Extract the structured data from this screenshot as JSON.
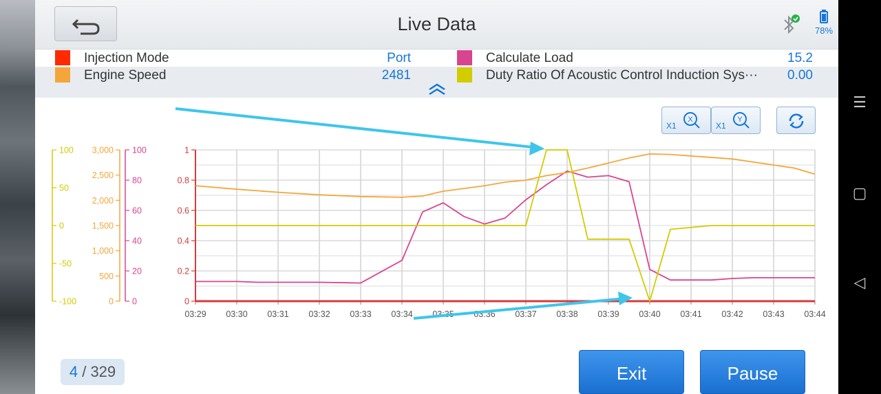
{
  "header": {
    "title": "Live Data",
    "battery": "78%"
  },
  "icons": {
    "back": "back-arrow-icon",
    "bluetooth": "bluetooth-connected-icon",
    "battery": "battery-icon",
    "collapse": "double-chevron-up-icon",
    "refresh": "refresh-icon"
  },
  "params": [
    {
      "name": "Injection Mode",
      "value": "Port",
      "color": "#ff2a00"
    },
    {
      "name": "Calculate Load",
      "value": "15.2",
      "color": "#d9448e"
    },
    {
      "name": "Engine Speed",
      "value": "2481",
      "color": "#f4a63a"
    },
    {
      "name": "Duty Ratio Of Acoustic Control Induction Sys···",
      "value": "0.00",
      "color": "#d2cc00"
    }
  ],
  "toolbar": {
    "zoom_x_label": "X1",
    "zoom_y_label": "X1",
    "zoom_x_icon": "X",
    "zoom_y_icon": "Y"
  },
  "chart_data": {
    "type": "line",
    "x": [
      "03:29",
      "03:30",
      "03:31",
      "03:32",
      "03:33",
      "03:34",
      "03:35",
      "03:36",
      "03:37",
      "03:38",
      "03:39",
      "03:40",
      "03:41",
      "03:42",
      "03:43",
      "03:44"
    ],
    "axes": [
      {
        "id": "red",
        "color": "#d83a3a",
        "ticks": [
          "0",
          "0.2",
          "0.4",
          "0.6",
          "0.8",
          "1"
        ],
        "ylim": [
          0,
          1
        ]
      },
      {
        "id": "magenta",
        "color": "#d9448e",
        "ticks": [
          "0",
          "20",
          "40",
          "60",
          "80",
          "100"
        ],
        "ylim": [
          0,
          100
        ]
      },
      {
        "id": "orange",
        "color": "#f4a63a",
        "ticks": [
          "0",
          "500",
          "1,000",
          "1,500",
          "2,000",
          "2,500",
          "3,000"
        ],
        "ylim": [
          0,
          3000
        ]
      },
      {
        "id": "yellow",
        "color": "#d2cc00",
        "ticks": [
          "-100",
          "-50",
          "0",
          "50",
          "100"
        ],
        "ylim": [
          -100,
          100
        ]
      }
    ],
    "series": [
      {
        "axis": "red",
        "color": "#d83a3a",
        "points": [
          [
            0,
            0
          ],
          [
            15,
            0
          ]
        ]
      },
      {
        "axis": "magenta",
        "color": "#d9448e",
        "points": [
          [
            0,
            13
          ],
          [
            1,
            13
          ],
          [
            1.5,
            12.5
          ],
          [
            3,
            12.5
          ],
          [
            4,
            12
          ],
          [
            5,
            27
          ],
          [
            5.5,
            59
          ],
          [
            6,
            65
          ],
          [
            6.5,
            56
          ],
          [
            7,
            51
          ],
          [
            7.5,
            55
          ],
          [
            8,
            67
          ],
          [
            8.5,
            77
          ],
          [
            9,
            86
          ],
          [
            9.5,
            82
          ],
          [
            10,
            83
          ],
          [
            10.5,
            79
          ],
          [
            11,
            21
          ],
          [
            11.5,
            14
          ],
          [
            12.5,
            14
          ],
          [
            13,
            15
          ],
          [
            13.5,
            15.5
          ],
          [
            15,
            15.5
          ]
        ]
      },
      {
        "axis": "orange",
        "color": "#f4a63a",
        "points": [
          [
            0,
            2290
          ],
          [
            1,
            2220
          ],
          [
            2,
            2160
          ],
          [
            3,
            2110
          ],
          [
            4,
            2075
          ],
          [
            5,
            2060
          ],
          [
            5.5,
            2085
          ],
          [
            6,
            2180
          ],
          [
            6.5,
            2235
          ],
          [
            7,
            2290
          ],
          [
            7.5,
            2360
          ],
          [
            8,
            2400
          ],
          [
            8.5,
            2490
          ],
          [
            9,
            2550
          ],
          [
            9.5,
            2640
          ],
          [
            10,
            2740
          ],
          [
            10.5,
            2840
          ],
          [
            11,
            2920
          ],
          [
            11.5,
            2910
          ],
          [
            12,
            2880
          ],
          [
            13,
            2820
          ],
          [
            14,
            2700
          ],
          [
            14.5,
            2640
          ],
          [
            15,
            2520
          ]
        ]
      },
      {
        "axis": "yellow",
        "color": "#d2cc00",
        "points": [
          [
            0,
            0
          ],
          [
            8,
            0
          ],
          [
            8.5,
            100
          ],
          [
            9,
            100
          ],
          [
            9.5,
            -18
          ],
          [
            10.5,
            -18
          ],
          [
            11,
            -100
          ],
          [
            11.5,
            -5
          ],
          [
            12.5,
            0
          ],
          [
            15,
            0
          ]
        ]
      }
    ]
  },
  "pager": {
    "current": "4",
    "sep": " / ",
    "total": "329"
  },
  "buttons": {
    "exit": "Exit",
    "pause": "Pause"
  }
}
